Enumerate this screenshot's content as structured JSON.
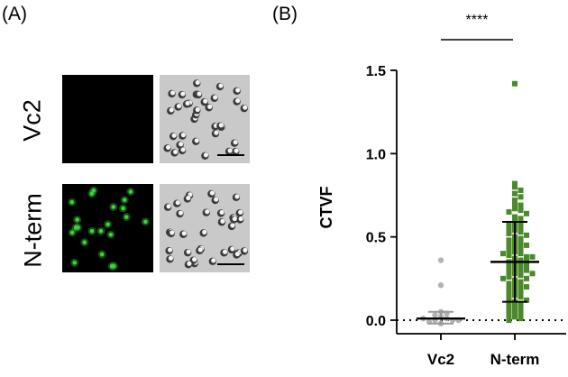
{
  "figure": {
    "panel_a_label": "(A)",
    "panel_b_label": "(B)",
    "rows": [
      {
        "label": "Vc2",
        "fluorescence": "none"
      },
      {
        "label": "N-term",
        "fluorescence": "green"
      }
    ],
    "colors": {
      "vc2_points": "#b3b3b3",
      "nterm_points": "#4a8a2a",
      "fluor_green": "#3cd23c",
      "brightfield_bg": "#c9c9c9"
    }
  },
  "chart_data": {
    "type": "scatter",
    "ylabel": "CTVF",
    "xlabel": "",
    "categories": [
      "Vc2",
      "N-term"
    ],
    "ylim": [
      0,
      1.5
    ],
    "yticks": [
      "0.0",
      "0.5",
      "1.0",
      "1.5"
    ],
    "significance": "****",
    "baseline": 0.0,
    "series": [
      {
        "category": "Vc2",
        "mean": 0.01,
        "sd_low": -0.02,
        "sd_high": 0.05,
        "values": [
          0.36,
          0.21,
          0.05,
          0.04,
          0.03,
          0.02,
          0.01,
          0.0,
          0.0,
          -0.01,
          0.0,
          0.01,
          -0.02
        ]
      },
      {
        "category": "N-term",
        "mean": 0.35,
        "sd_low": 0.11,
        "sd_high": 0.59,
        "values": [
          1.42,
          0.82,
          0.8,
          0.78,
          0.76,
          0.74,
          0.72,
          0.7,
          0.69,
          0.67,
          0.66,
          0.65,
          0.64,
          0.62,
          0.61,
          0.6,
          0.59,
          0.58,
          0.57,
          0.56,
          0.55,
          0.54,
          0.53,
          0.52,
          0.51,
          0.5,
          0.49,
          0.48,
          0.47,
          0.46,
          0.45,
          0.44,
          0.43,
          0.42,
          0.41,
          0.4,
          0.39,
          0.38,
          0.37,
          0.36,
          0.35,
          0.34,
          0.33,
          0.32,
          0.31,
          0.3,
          0.29,
          0.28,
          0.27,
          0.26,
          0.25,
          0.24,
          0.23,
          0.22,
          0.21,
          0.2,
          0.19,
          0.18,
          0.17,
          0.16,
          0.15,
          0.14,
          0.13,
          0.12,
          0.11,
          0.1,
          0.09,
          0.08,
          0.07,
          0.06,
          0.05,
          0.04,
          0.03,
          0.02,
          0.01,
          0.0,
          0.35,
          0.4,
          0.3,
          0.25,
          0.45,
          0.2,
          0.38,
          0.33,
          0.28
        ]
      }
    ]
  }
}
